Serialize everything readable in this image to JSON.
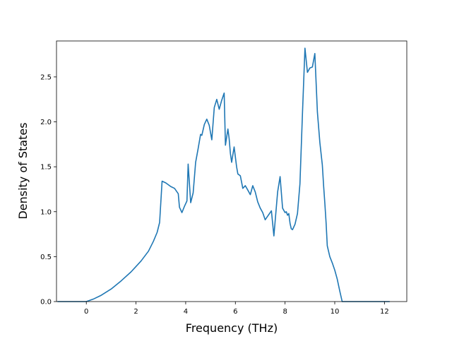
{
  "chart_data": {
    "type": "line",
    "title": "",
    "xlabel": "Frequency (THz)",
    "ylabel": "Density of States",
    "xlim": [
      -1.2,
      12.9
    ],
    "ylim": [
      0.0,
      2.9
    ],
    "xticks": [
      0,
      2,
      4,
      6,
      8,
      10,
      12
    ],
    "xtick_labels": [
      "0",
      "2",
      "4",
      "6",
      "8",
      "10",
      "12"
    ],
    "yticks": [
      0.0,
      0.5,
      1.0,
      1.5,
      2.0,
      2.5
    ],
    "ytick_labels": [
      "0.0",
      "0.5",
      "1.0",
      "1.5",
      "2.0",
      "2.5"
    ],
    "grid": false,
    "legend": false,
    "series": [
      {
        "color": "#1f77b4",
        "x": [
          -1.15,
          -0.5,
          0.0,
          0.3,
          0.6,
          1.0,
          1.4,
          1.8,
          2.2,
          2.5,
          2.7,
          2.85,
          2.95,
          3.05,
          3.2,
          3.4,
          3.55,
          3.7,
          3.75,
          3.85,
          3.95,
          4.05,
          4.1,
          4.2,
          4.3,
          4.4,
          4.5,
          4.6,
          4.65,
          4.75,
          4.85,
          4.95,
          5.05,
          5.15,
          5.25,
          5.35,
          5.45,
          5.55,
          5.6,
          5.7,
          5.75,
          5.8,
          5.85,
          5.95,
          6.05,
          6.1,
          6.2,
          6.3,
          6.4,
          6.5,
          6.6,
          6.7,
          6.8,
          6.9,
          7.0,
          7.1,
          7.2,
          7.3,
          7.45,
          7.55,
          7.7,
          7.8,
          7.9,
          8.0,
          8.05,
          8.1,
          8.15,
          8.2,
          8.25,
          8.3,
          8.4,
          8.5,
          8.6,
          8.7,
          8.8,
          8.9,
          9.0,
          9.1,
          9.2,
          9.3,
          9.4,
          9.5,
          9.55,
          9.6,
          9.65,
          9.7,
          9.8,
          9.9,
          10.0,
          10.1,
          10.2,
          10.3,
          10.4,
          10.5,
          10.6,
          10.7,
          10.8,
          10.9,
          11.0,
          11.1,
          11.5,
          12.2
        ],
        "y": [
          0.0,
          0.0,
          0.0,
          0.03,
          0.07,
          0.14,
          0.23,
          0.33,
          0.45,
          0.56,
          0.67,
          0.77,
          0.88,
          1.34,
          1.32,
          1.28,
          1.26,
          1.2,
          1.05,
          0.99,
          1.06,
          1.12,
          1.53,
          1.1,
          1.21,
          1.55,
          1.7,
          1.86,
          1.85,
          1.97,
          2.03,
          1.96,
          1.8,
          2.16,
          2.25,
          2.14,
          2.24,
          2.32,
          1.74,
          1.92,
          1.81,
          1.65,
          1.55,
          1.72,
          1.5,
          1.42,
          1.4,
          1.26,
          1.29,
          1.24,
          1.19,
          1.29,
          1.22,
          1.11,
          1.04,
          0.99,
          0.91,
          0.95,
          1.01,
          0.73,
          1.22,
          1.39,
          1.04,
          0.99,
          1.0,
          0.96,
          0.98,
          0.87,
          0.81,
          0.8,
          0.86,
          0.98,
          1.31,
          2.1,
          2.82,
          2.55,
          2.6,
          2.61,
          2.76,
          2.11,
          1.77,
          1.52,
          1.29,
          1.1,
          0.88,
          0.62,
          0.5,
          0.43,
          0.35,
          0.25,
          0.12,
          0.0,
          0.0,
          0.0,
          0.0,
          0.0,
          0.0,
          0.0,
          0.0,
          0.0,
          0.0,
          0.0
        ]
      }
    ]
  }
}
